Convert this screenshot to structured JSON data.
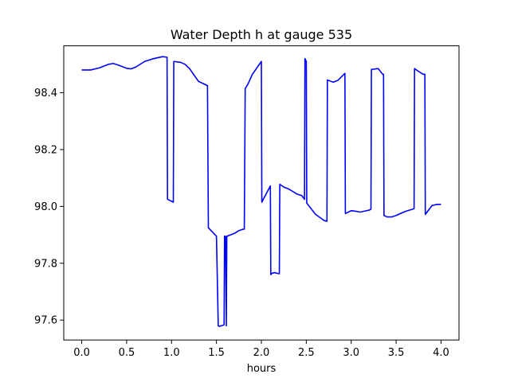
{
  "chart_data": {
    "type": "line",
    "title": "Water Depth h at gauge 535",
    "xlabel": "hours",
    "ylabel": "",
    "xlim": [
      -0.2,
      4.2
    ],
    "ylim": [
      97.53,
      98.565
    ],
    "xticks": [
      0.0,
      0.5,
      1.0,
      1.5,
      2.0,
      2.5,
      3.0,
      3.5,
      4.0
    ],
    "xtick_labels": [
      "0.0",
      "0.5",
      "1.0",
      "1.5",
      "2.0",
      "2.5",
      "3.0",
      "3.5",
      "4.0"
    ],
    "yticks": [
      97.6,
      97.8,
      98.0,
      98.2,
      98.4
    ],
    "ytick_labels": [
      "97.6",
      "97.8",
      "98.0",
      "98.2",
      "98.4"
    ],
    "grid": false,
    "colors": {
      "series": "#0000ff",
      "axes": "#000000",
      "background": "#ffffff"
    },
    "series": [
      {
        "x": [
          0.0,
          0.1,
          0.2,
          0.3,
          0.35,
          0.4,
          0.5,
          0.55,
          0.6,
          0.7,
          0.8,
          0.9,
          0.95,
          0.955,
          1.02,
          1.025,
          1.1,
          1.15,
          1.2,
          1.3,
          1.4,
          1.41,
          1.5,
          1.52,
          1.53,
          1.585,
          1.59,
          1.6,
          1.61,
          1.615,
          1.7,
          1.75,
          1.8,
          1.81,
          1.82,
          1.85,
          1.9,
          2.0,
          2.005,
          2.1,
          2.105,
          2.12,
          2.15,
          2.17,
          2.2,
          2.205,
          2.25,
          2.3,
          2.4,
          2.45,
          2.48,
          2.485,
          2.5,
          2.505,
          2.6,
          2.7,
          2.73,
          2.735,
          2.8,
          2.85,
          2.93,
          2.935,
          3.0,
          3.05,
          3.1,
          3.2,
          3.22,
          3.225,
          3.3,
          3.35,
          3.36,
          3.365,
          3.4,
          3.45,
          3.5,
          3.6,
          3.7,
          3.705,
          3.75,
          3.8,
          3.82,
          3.825,
          3.9,
          3.95,
          4.0
        ],
        "y": [
          98.48,
          98.48,
          98.488,
          98.5,
          98.503,
          98.498,
          98.486,
          98.484,
          98.49,
          98.51,
          98.52,
          98.527,
          98.525,
          98.025,
          98.015,
          98.51,
          98.507,
          98.5,
          98.485,
          98.44,
          98.425,
          97.925,
          97.895,
          97.58,
          97.578,
          97.583,
          97.895,
          97.895,
          97.58,
          97.895,
          97.905,
          97.915,
          97.92,
          97.92,
          98.415,
          98.43,
          98.465,
          98.51,
          98.015,
          98.072,
          97.76,
          97.765,
          97.767,
          97.765,
          97.763,
          98.078,
          98.068,
          98.062,
          98.043,
          98.038,
          98.025,
          98.52,
          98.51,
          98.012,
          97.973,
          97.95,
          97.948,
          98.445,
          98.437,
          98.443,
          98.468,
          97.975,
          97.985,
          97.983,
          97.98,
          97.987,
          97.99,
          98.482,
          98.485,
          98.465,
          98.465,
          97.968,
          97.963,
          97.963,
          97.968,
          97.982,
          97.992,
          98.485,
          98.475,
          98.465,
          98.465,
          97.972,
          98.003,
          98.007,
          98.007
        ]
      }
    ]
  }
}
